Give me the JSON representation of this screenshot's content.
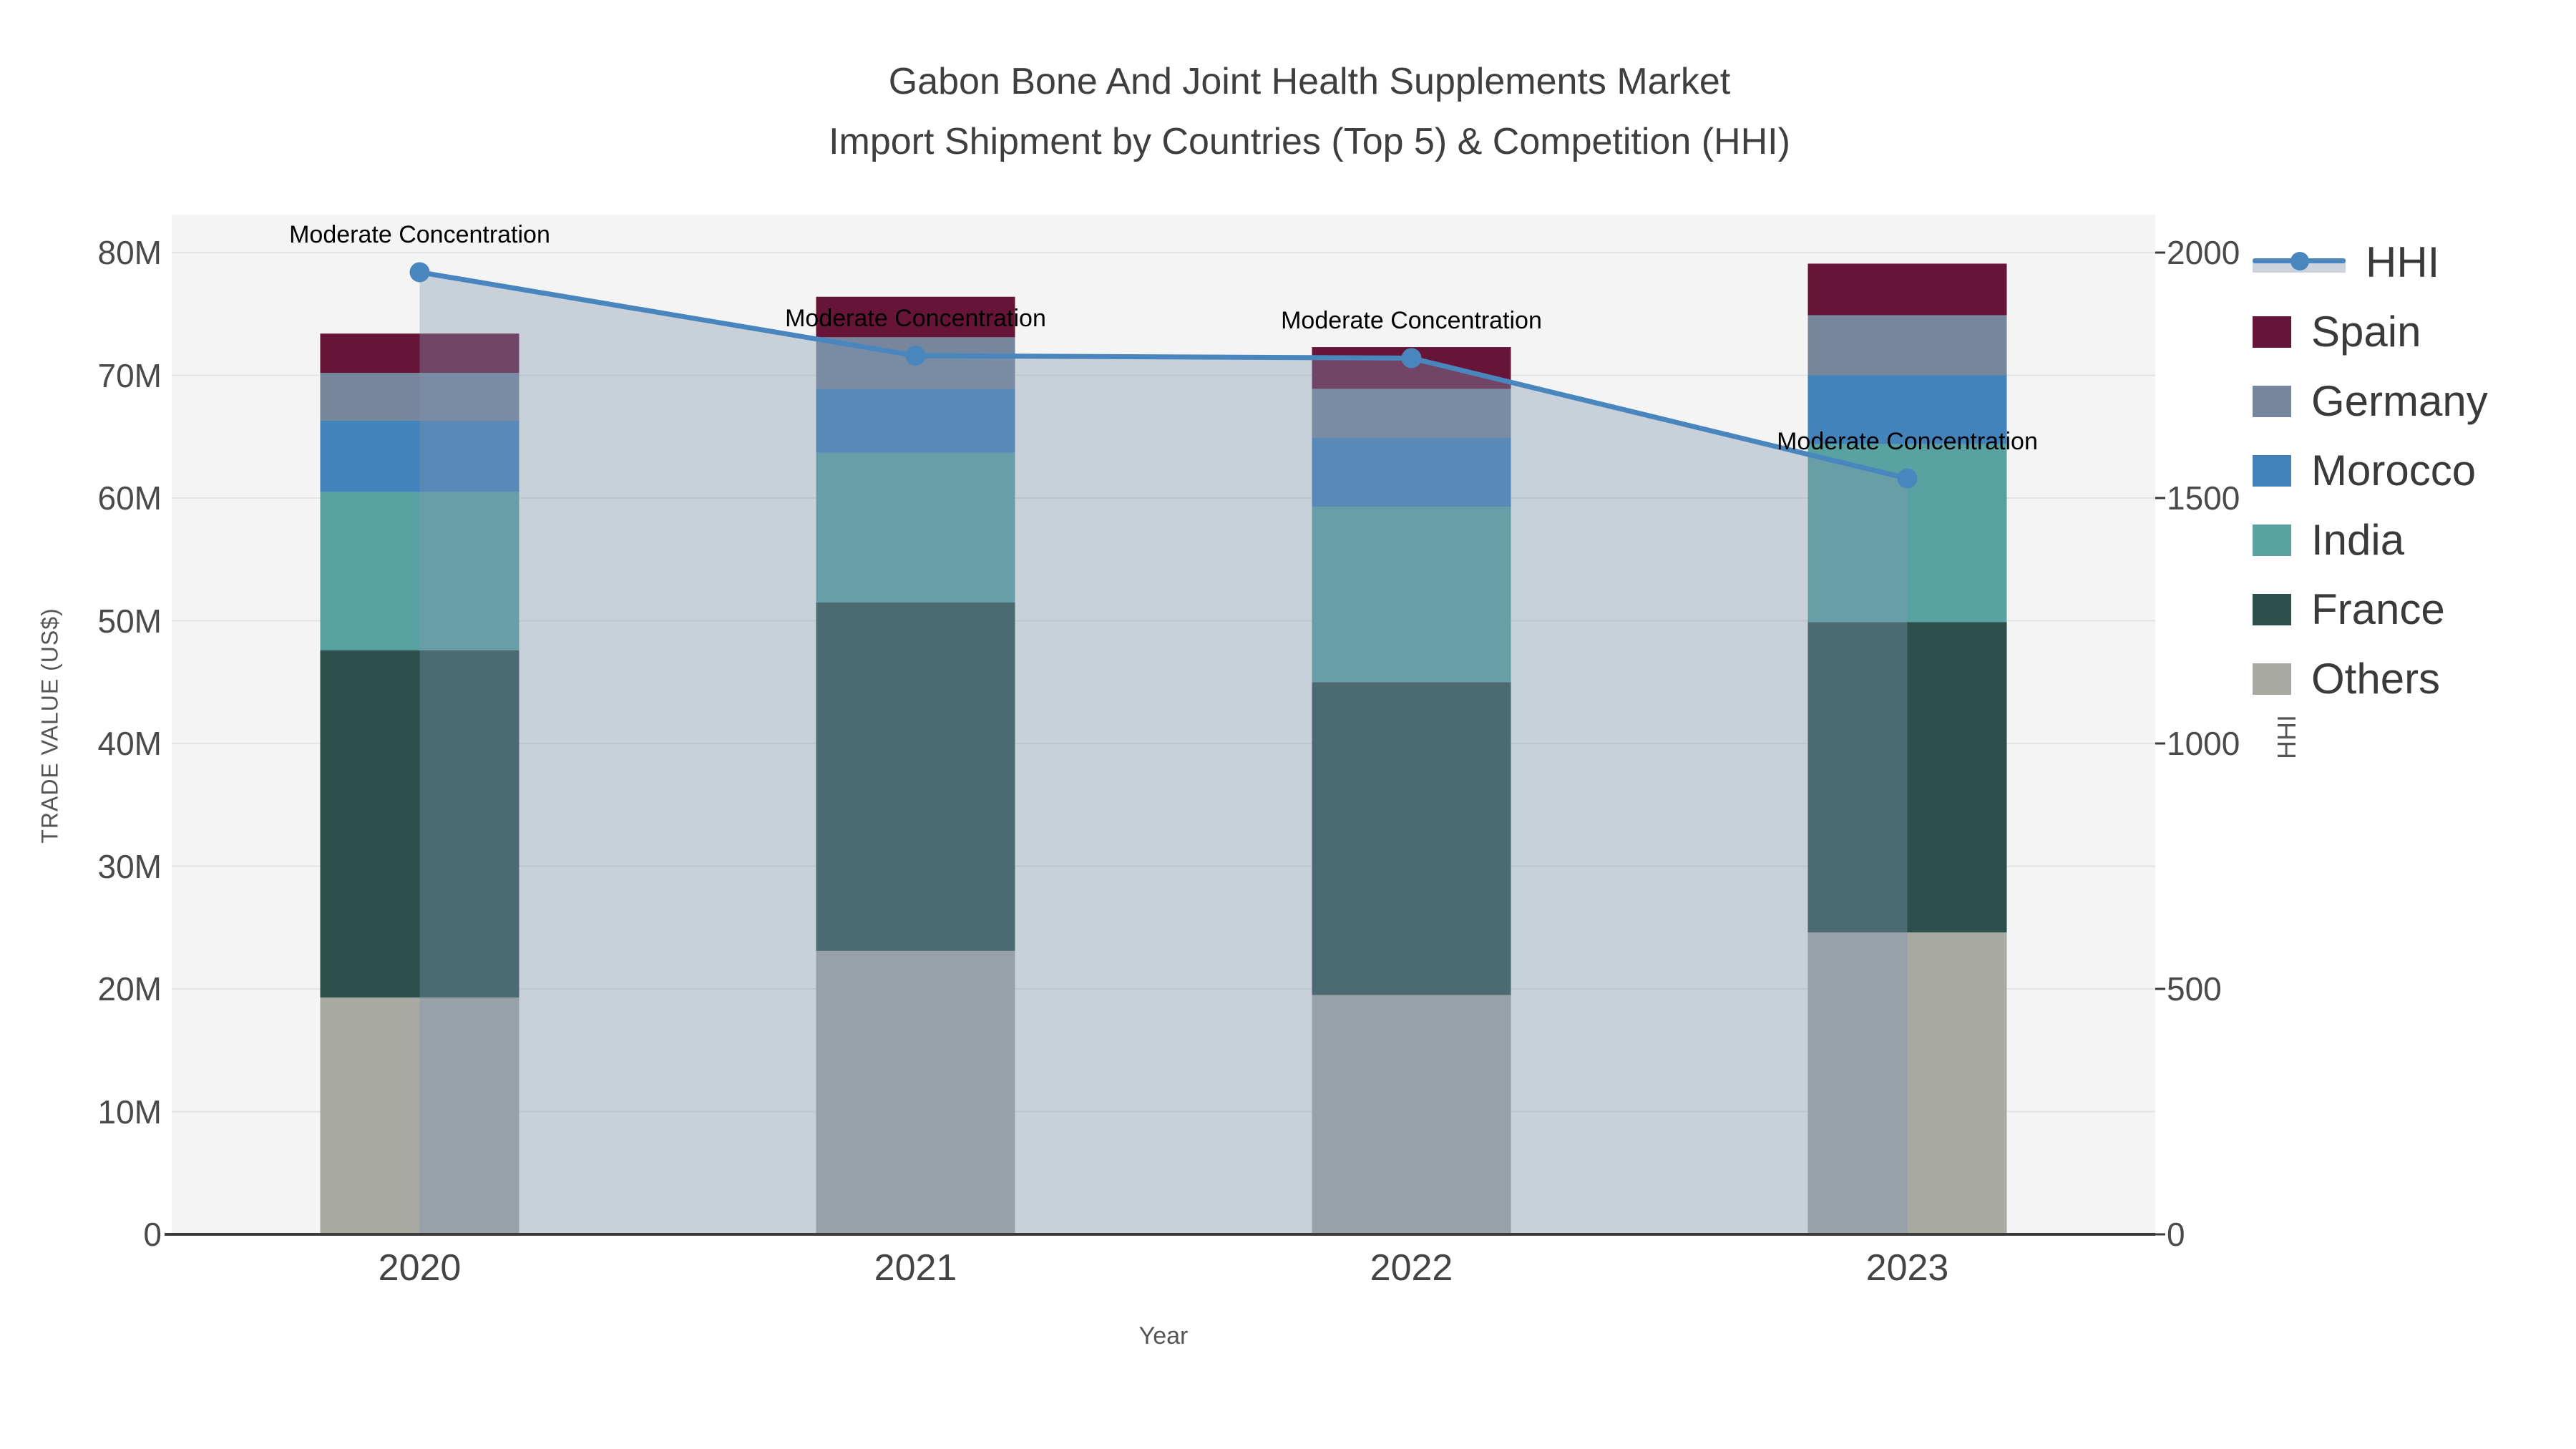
{
  "title": {
    "line1": "Gabon Bone And Joint Health Supplements Market",
    "line2": "Import Shipment by Countries (Top 5) & Competition (HHI)"
  },
  "axes": {
    "y_left": {
      "title": "TRADE VALUE (US$)",
      "ticks": [
        "0",
        "10M",
        "20M",
        "30M",
        "40M",
        "50M",
        "60M",
        "70M",
        "80M"
      ],
      "range_millions": [
        0,
        80
      ]
    },
    "y_right": {
      "title": "HHI",
      "ticks": [
        "0",
        "500",
        "1000",
        "1500",
        "2000"
      ],
      "range": [
        0,
        2000
      ]
    },
    "x": {
      "title": "Year",
      "categories": [
        "2020",
        "2021",
        "2022",
        "2023"
      ]
    }
  },
  "legend": {
    "items": [
      {
        "label": "HHI",
        "type": "line",
        "color": "#4a86be"
      },
      {
        "label": "Spain",
        "type": "swatch",
        "color": "#671439"
      },
      {
        "label": "Germany",
        "type": "swatch",
        "color": "#76869c"
      },
      {
        "label": "Morocco",
        "type": "swatch",
        "color": "#4283bc"
      },
      {
        "label": "India",
        "type": "swatch",
        "color": "#58a3a2"
      },
      {
        "label": "France",
        "type": "swatch",
        "color": "#2d4f4b"
      },
      {
        "label": "Others",
        "type": "swatch",
        "color": "#a9a9a4"
      }
    ]
  },
  "annotations": [
    {
      "text": "Moderate Concentration",
      "category": "2020"
    },
    {
      "text": "Moderate Concentration",
      "category": "2021"
    },
    {
      "text": "Moderate Concentration",
      "category": "2022"
    },
    {
      "text": "Moderate Concentration",
      "category": "2023"
    }
  ],
  "chart_data": {
    "type": "bar",
    "subtype": "stacked bars with HHI line + area overlay on secondary axis",
    "categories": [
      "2020",
      "2021",
      "2022",
      "2023"
    ],
    "value_unit": "US$ millions",
    "series": [
      {
        "name": "Others",
        "color": "#a9a9a4",
        "values": [
          19.3,
          23.1,
          19.5,
          24.6
        ]
      },
      {
        "name": "France",
        "color": "#2d4f4b",
        "values": [
          28.3,
          28.4,
          25.5,
          25.3
        ]
      },
      {
        "name": "India",
        "color": "#58a3a2",
        "values": [
          12.9,
          12.2,
          14.3,
          14.5
        ]
      },
      {
        "name": "Morocco",
        "color": "#4283bc",
        "values": [
          5.8,
          5.2,
          5.6,
          5.6
        ]
      },
      {
        "name": "Germany",
        "color": "#76869c",
        "values": [
          3.9,
          4.2,
          4.0,
          4.9
        ]
      },
      {
        "name": "Spain",
        "color": "#671439",
        "values": [
          3.2,
          3.3,
          3.4,
          4.2
        ]
      }
    ],
    "stack_totals_millions": [
      73.4,
      76.4,
      72.3,
      79.1
    ],
    "line_series": {
      "name": "HHI",
      "axis": "right",
      "color": "#4a86be",
      "area_fill": "rgba(129,149,175,0.38)",
      "values": [
        1960,
        1790,
        1785,
        1540
      ]
    },
    "title": "Gabon Bone And Joint Health Supplements Market Import Shipment by Countries (Top 5) & Competition (HHI)",
    "xlabel": "Year",
    "ylabel": "TRADE VALUE (US$)",
    "y2label": "HHI",
    "ylim_millions": [
      0,
      80
    ],
    "y2lim": [
      0,
      2000
    ],
    "grid": true,
    "legend_position": "outside-right",
    "plot_background": "#f4f4f4",
    "gridline_color": "#e3e3e3"
  }
}
